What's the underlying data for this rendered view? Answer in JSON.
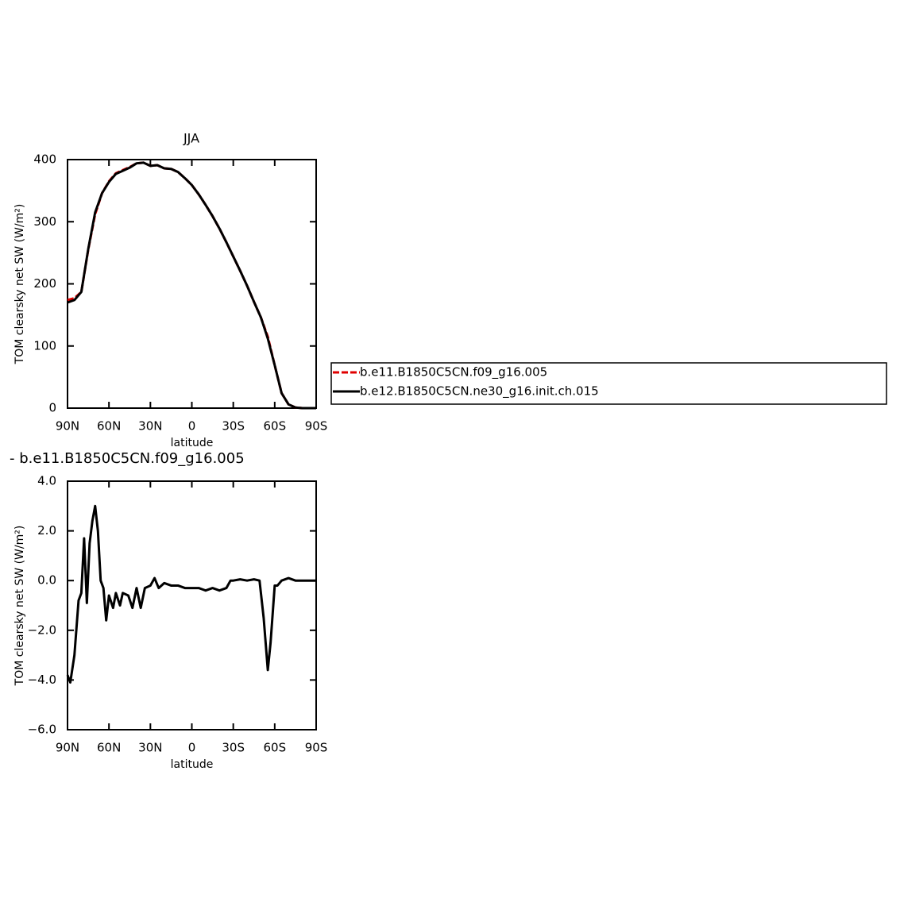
{
  "chart_data": [
    {
      "type": "line",
      "title": "JJA",
      "ylabel": "TOM clearsky net SW (W/m²)",
      "xlabel": "latitude",
      "x": [
        90,
        85,
        80,
        75,
        70,
        65,
        60,
        55,
        50,
        45,
        40,
        35,
        30,
        25,
        20,
        15,
        10,
        5,
        0,
        -5,
        -10,
        -15,
        -20,
        -25,
        -30,
        -35,
        -40,
        -45,
        -50,
        -55,
        -60,
        -65,
        -70,
        -75,
        -80,
        -85,
        -90
      ],
      "xlim": [
        90,
        -90
      ],
      "xticks": [
        {
          "value": 90,
          "label": "90N"
        },
        {
          "value": 60,
          "label": "60N"
        },
        {
          "value": 30,
          "label": "30N"
        },
        0,
        {
          "value": -30,
          "label": "30S"
        },
        {
          "value": -60,
          "label": "60S"
        },
        {
          "value": -90,
          "label": "90S"
        }
      ],
      "ylim": [
        0,
        400
      ],
      "yticks": [
        0,
        100,
        200,
        300,
        400
      ],
      "legend": "right",
      "series": [
        {
          "name": "b.e11.B1850C5CN.f09_g16.005",
          "color": "#e00000",
          "dashed": true,
          "values": [
            174,
            177,
            187,
            255,
            312,
            346,
            365,
            378,
            383,
            388,
            394,
            395,
            390,
            391,
            386,
            385,
            380,
            370,
            359,
            344,
            327,
            309,
            289,
            267,
            244,
            221,
            197,
            171,
            146,
            115,
            69,
            24,
            6,
            1,
            0,
            0,
            0
          ]
        },
        {
          "name": "b.e12.B1850C5CN.ne30_g16.init.ch.015",
          "color": "#000000",
          "dashed": false,
          "values": [
            170,
            174,
            187,
            256,
            315,
            346,
            364,
            377,
            382,
            387,
            394,
            395,
            390,
            391,
            386,
            385,
            380,
            370,
            359,
            344,
            327,
            309,
            289,
            267,
            244,
            221,
            197,
            171,
            146,
            112,
            69,
            24,
            6,
            1,
            0,
            0,
            0
          ]
        }
      ]
    },
    {
      "type": "line",
      "title": "- b.e11.B1850C5CN.f09_g16.005",
      "ylabel": "TOM clearsky net SW (W/m²)",
      "xlabel": "latitude",
      "x": [
        90,
        88,
        85,
        82,
        80,
        78,
        76,
        74,
        72,
        70,
        68,
        66,
        64,
        62,
        60,
        57,
        55,
        52,
        50,
        46,
        43,
        40,
        37,
        34,
        30,
        27,
        24,
        20,
        15,
        10,
        5,
        0,
        -5,
        -10,
        -15,
        -20,
        -25,
        -28,
        -30,
        -35,
        -40,
        -45,
        -49,
        -52,
        -55,
        -57,
        -60,
        -62,
        -65,
        -70,
        -75,
        -80,
        -90
      ],
      "xlim": [
        90,
        -90
      ],
      "xticks": [
        {
          "value": 90,
          "label": "90N"
        },
        {
          "value": 60,
          "label": "60N"
        },
        {
          "value": 30,
          "label": "30N"
        },
        0,
        {
          "value": -30,
          "label": "30S"
        },
        {
          "value": -60,
          "label": "60S"
        },
        {
          "value": -90,
          "label": "90S"
        }
      ],
      "ylim": [
        -6,
        4
      ],
      "yticks": [
        {
          "value": -6,
          "label": "−6.0"
        },
        {
          "value": -4,
          "label": "−4.0"
        },
        {
          "value": -2,
          "label": "−2.0"
        },
        {
          "value": 0,
          "label": "0.0"
        },
        {
          "value": 2,
          "label": "2.0"
        },
        {
          "value": 4,
          "label": "4.0"
        }
      ],
      "series": [
        {
          "color": "#000000",
          "dashed": false,
          "values": [
            -3.8,
            -4.1,
            -3.0,
            -0.8,
            -0.5,
            1.7,
            -0.9,
            1.5,
            2.4,
            3.0,
            2.0,
            0.0,
            -0.3,
            -1.6,
            -0.6,
            -1.1,
            -0.5,
            -1.0,
            -0.5,
            -0.6,
            -1.1,
            -0.3,
            -1.1,
            -0.3,
            -0.2,
            0.1,
            -0.3,
            -0.1,
            -0.2,
            -0.2,
            -0.3,
            -0.3,
            -0.3,
            -0.4,
            -0.3,
            -0.4,
            -0.3,
            0.0,
            0.0,
            0.05,
            0.0,
            0.05,
            0.0,
            -1.5,
            -3.6,
            -2.5,
            -0.2,
            -0.2,
            0.0,
            0.1,
            0.0,
            0.0,
            0.0
          ]
        }
      ]
    }
  ]
}
